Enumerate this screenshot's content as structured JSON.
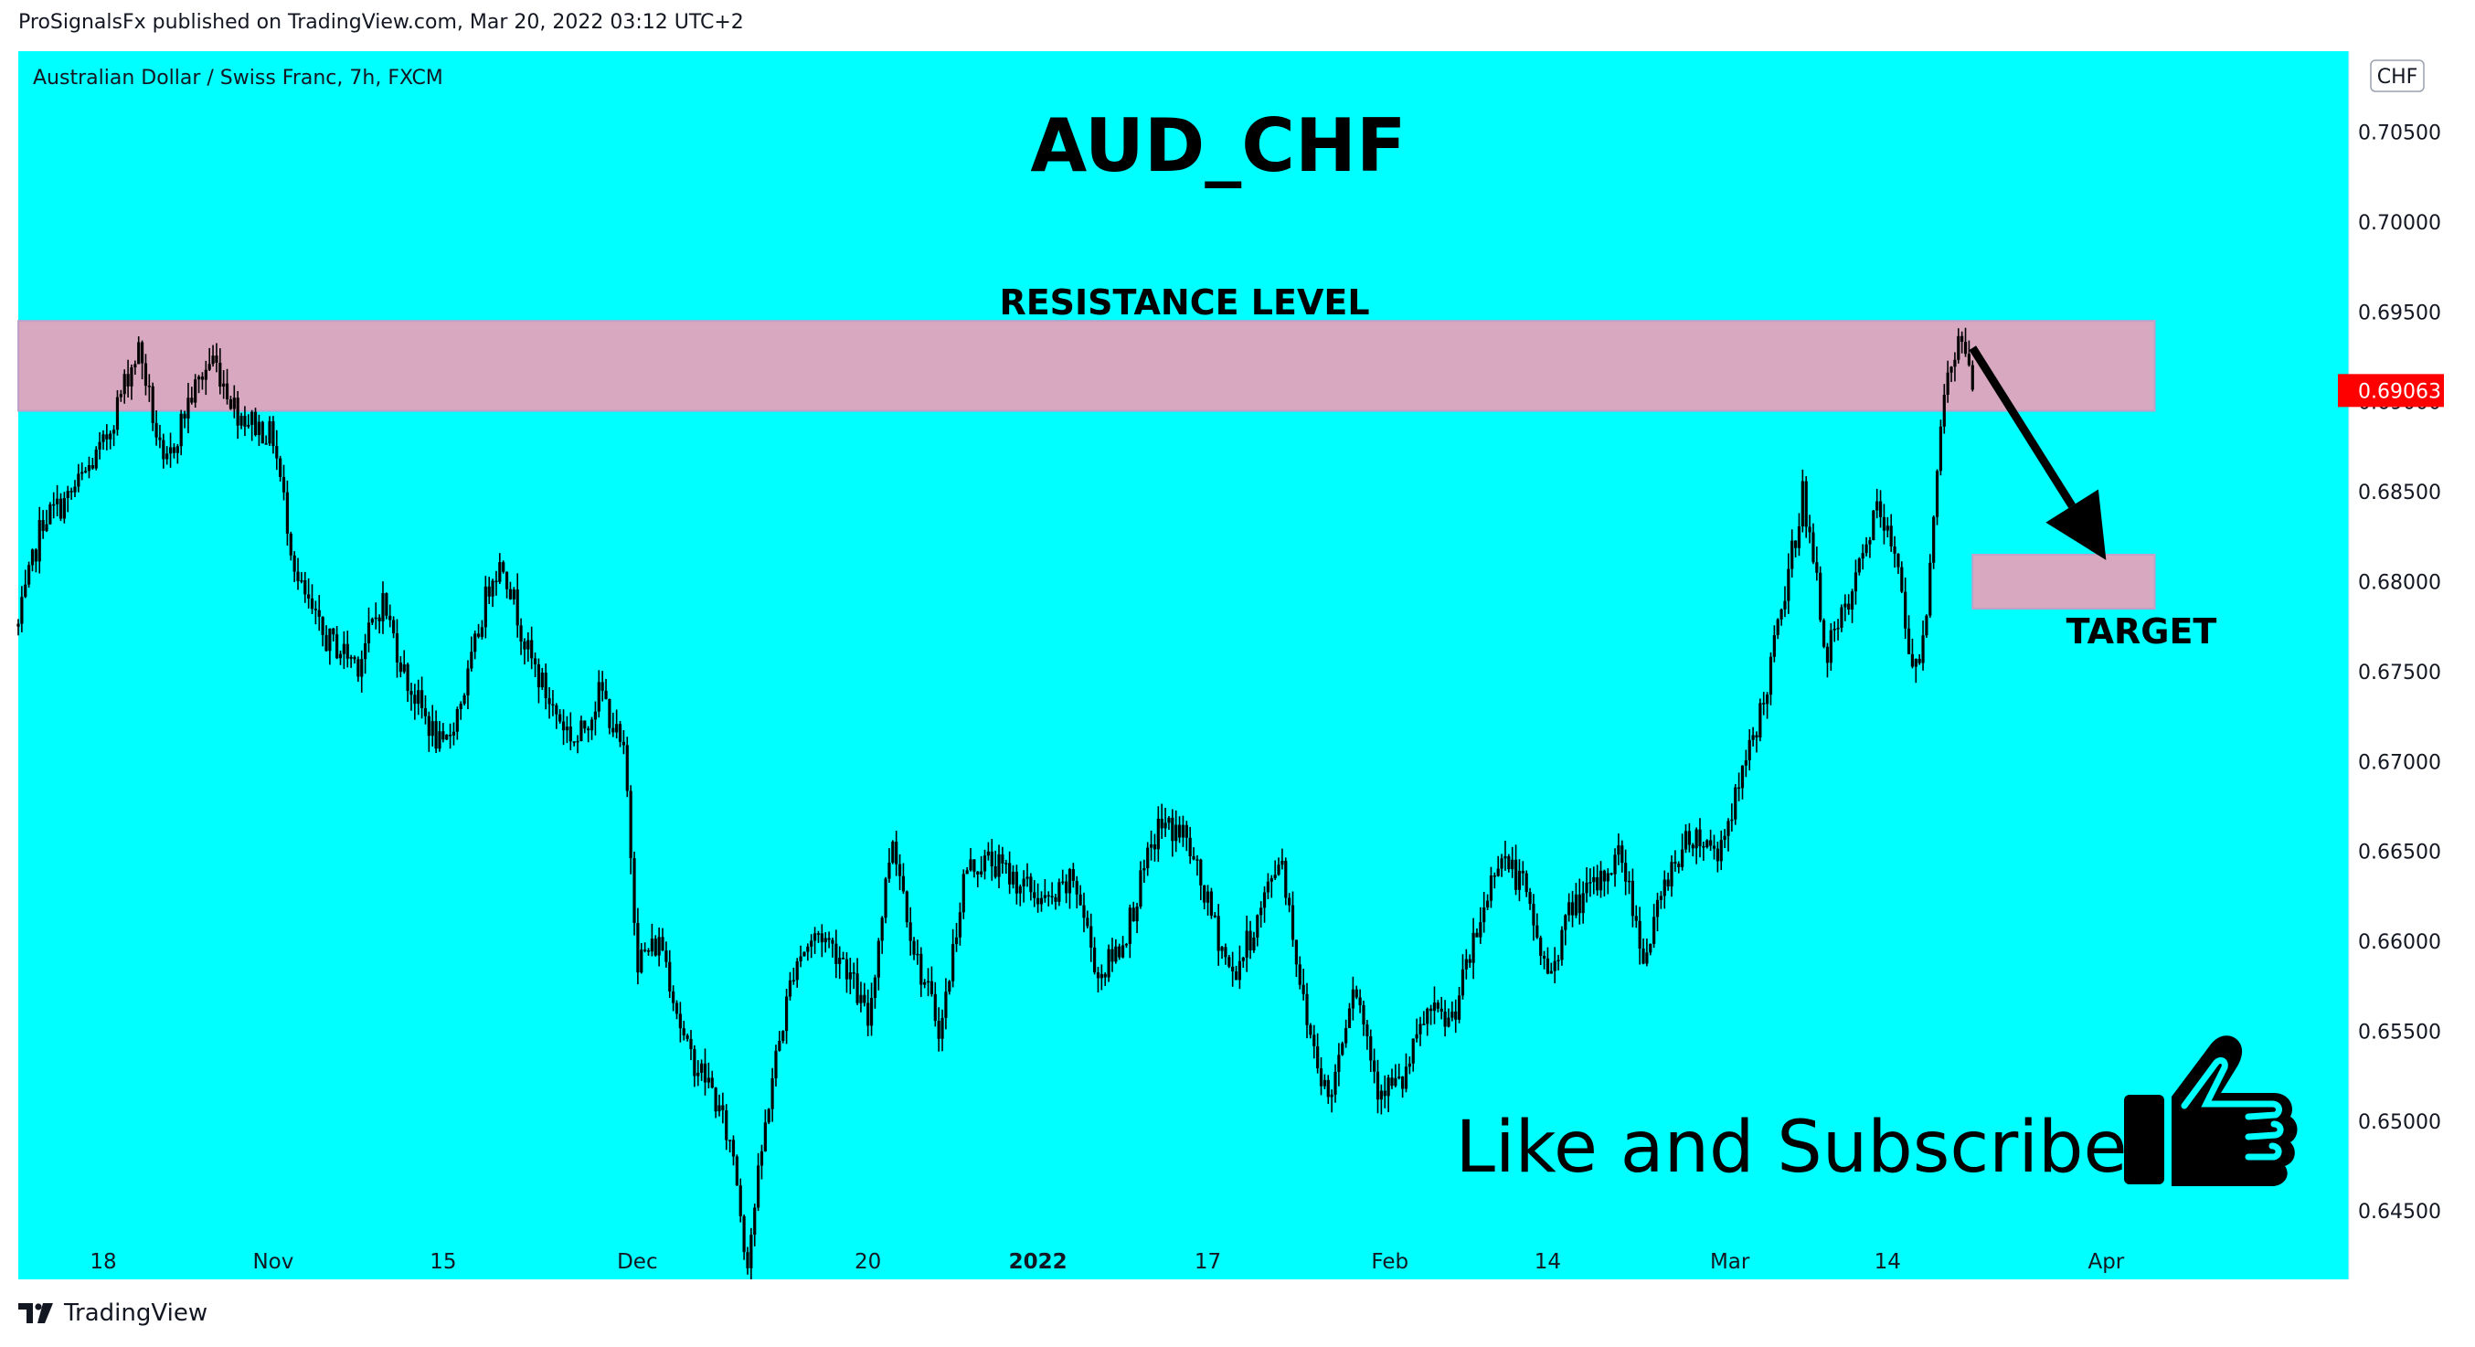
{
  "header": {
    "published_text": "ProSignalsFx published on TradingView.com, Mar 20, 2022 03:12 UTC+2"
  },
  "footer": {
    "brand": "TradingView"
  },
  "colors": {
    "plot_bg": "#00FFFF",
    "zone": "#D8A8C0",
    "candle": "#000000",
    "price_badge": "#FF0000",
    "price_badge_text": "#FFFFFF"
  },
  "chart_data": {
    "type": "candlestick",
    "symbol_line": "Australian Dollar / Swiss Franc, 7h, FXCM",
    "title": "AUD_CHF",
    "currency": "CHF",
    "last_price": "0.69063",
    "ylim": [
      0.6412,
      0.7095
    ],
    "y_ticks": [
      "0.70500",
      "0.70000",
      "0.69500",
      "0.69000",
      "0.68500",
      "0.68000",
      "0.67500",
      "0.67000",
      "0.66500",
      "0.66000",
      "0.65500",
      "0.65000",
      "0.64500"
    ],
    "x_ticks": [
      {
        "label": "18",
        "date": "2021-10-18",
        "bold": false
      },
      {
        "label": "Nov",
        "date": "2021-11-01",
        "bold": false
      },
      {
        "label": "15",
        "date": "2021-11-15",
        "bold": false
      },
      {
        "label": "Dec",
        "date": "2021-12-01",
        "bold": false
      },
      {
        "label": "20",
        "date": "2021-12-20",
        "bold": false
      },
      {
        "label": "2022",
        "date": "2022-01-03",
        "bold": true
      },
      {
        "label": "17",
        "date": "2022-01-17",
        "bold": false
      },
      {
        "label": "Feb",
        "date": "2022-02-01",
        "bold": false
      },
      {
        "label": "14",
        "date": "2022-02-14",
        "bold": false
      },
      {
        "label": "Mar",
        "date": "2022-03-01",
        "bold": false
      },
      {
        "label": "14",
        "date": "2022-03-14",
        "bold": false
      },
      {
        "label": "Apr",
        "date": "2022-04-01",
        "bold": false
      }
    ],
    "price_path": [
      [
        "2021-10-11",
        0.6775
      ],
      [
        "2021-10-13",
        0.6835
      ],
      [
        "2021-10-15",
        0.6845
      ],
      [
        "2021-10-18",
        0.6875
      ],
      [
        "2021-10-20",
        0.6915
      ],
      [
        "2021-10-21",
        0.693
      ],
      [
        "2021-10-23",
        0.686
      ],
      [
        "2021-10-25",
        0.69
      ],
      [
        "2021-10-27",
        0.6925
      ],
      [
        "2021-10-29",
        0.6895
      ],
      [
        "2021-11-01",
        0.688
      ],
      [
        "2021-11-03",
        0.68
      ],
      [
        "2021-11-05",
        0.677
      ],
      [
        "2021-11-08",
        0.6755
      ],
      [
        "2021-11-10",
        0.679
      ],
      [
        "2021-11-12",
        0.6745
      ],
      [
        "2021-11-15",
        0.6705
      ],
      [
        "2021-11-17",
        0.6745
      ],
      [
        "2021-11-19",
        0.6805
      ],
      [
        "2021-11-20",
        0.681
      ],
      [
        "2021-11-22",
        0.676
      ],
      [
        "2021-11-24",
        0.673
      ],
      [
        "2021-11-26",
        0.671
      ],
      [
        "2021-11-28",
        0.674
      ],
      [
        "2021-11-30",
        0.67
      ],
      [
        "2021-12-01",
        0.659
      ],
      [
        "2021-12-03",
        0.66
      ],
      [
        "2021-12-05",
        0.654
      ],
      [
        "2021-12-07",
        0.652
      ],
      [
        "2021-12-09",
        0.648
      ],
      [
        "2021-12-10",
        0.642
      ],
      [
        "2021-12-12",
        0.652
      ],
      [
        "2021-12-14",
        0.659
      ],
      [
        "2021-12-16",
        0.6605
      ],
      [
        "2021-12-18",
        0.659
      ],
      [
        "2021-12-20",
        0.6555
      ],
      [
        "2021-12-22",
        0.666
      ],
      [
        "2021-12-24",
        0.659
      ],
      [
        "2021-12-26",
        0.655
      ],
      [
        "2021-12-28",
        0.664
      ],
      [
        "2021-12-30",
        0.6645
      ],
      [
        "2022-01-02",
        0.663
      ],
      [
        "2022-01-04",
        0.662
      ],
      [
        "2022-01-06",
        0.6635
      ],
      [
        "2022-01-08",
        0.658
      ],
      [
        "2022-01-10",
        0.66
      ],
      [
        "2022-01-13",
        0.6665
      ],
      [
        "2022-01-15",
        0.666
      ],
      [
        "2022-01-17",
        0.662
      ],
      [
        "2022-01-19",
        0.658
      ],
      [
        "2022-01-21",
        0.661
      ],
      [
        "2022-01-23",
        0.665
      ],
      [
        "2022-01-25",
        0.656
      ],
      [
        "2022-01-27",
        0.651
      ],
      [
        "2022-01-29",
        0.658
      ],
      [
        "2022-01-31",
        0.652
      ],
      [
        "2022-02-02",
        0.652
      ],
      [
        "2022-02-04",
        0.656
      ],
      [
        "2022-02-06",
        0.6555
      ],
      [
        "2022-02-08",
        0.66
      ],
      [
        "2022-02-10",
        0.665
      ],
      [
        "2022-02-12",
        0.663
      ],
      [
        "2022-02-14",
        0.658
      ],
      [
        "2022-02-16",
        0.662
      ],
      [
        "2022-02-18",
        0.663
      ],
      [
        "2022-02-20",
        0.665
      ],
      [
        "2022-02-22",
        0.659
      ],
      [
        "2022-02-24",
        0.664
      ],
      [
        "2022-02-26",
        0.666
      ],
      [
        "2022-02-28",
        0.665
      ],
      [
        "2022-03-02",
        0.669
      ],
      [
        "2022-03-04",
        0.674
      ],
      [
        "2022-03-06",
        0.681
      ],
      [
        "2022-03-07",
        0.685
      ],
      [
        "2022-03-09",
        0.676
      ],
      [
        "2022-03-11",
        0.679
      ],
      [
        "2022-03-13",
        0.684
      ],
      [
        "2022-03-15",
        0.681
      ],
      [
        "2022-03-16",
        0.6745
      ],
      [
        "2022-03-17",
        0.677
      ],
      [
        "2022-03-18",
        0.686
      ],
      [
        "2022-03-19",
        0.692
      ],
      [
        "2022-03-20",
        0.6935
      ],
      [
        "2022-03-21",
        0.6906
      ]
    ],
    "zones": [
      {
        "label": "RESISTANCE LEVEL",
        "from_date": "2021-10-11",
        "to_date": "2022-04-05",
        "y_low": 0.6895,
        "y_high": 0.6945
      },
      {
        "label": "TARGET",
        "from_date": "2022-03-21",
        "to_date": "2022-04-05",
        "y_low": 0.6785,
        "y_high": 0.6815
      }
    ],
    "arrow": {
      "from_date": "2022-03-21",
      "from_y": 0.693,
      "to_date": "2022-04-01",
      "to_y": 0.6812
    },
    "overlay_text": "Like and Subscribe"
  }
}
